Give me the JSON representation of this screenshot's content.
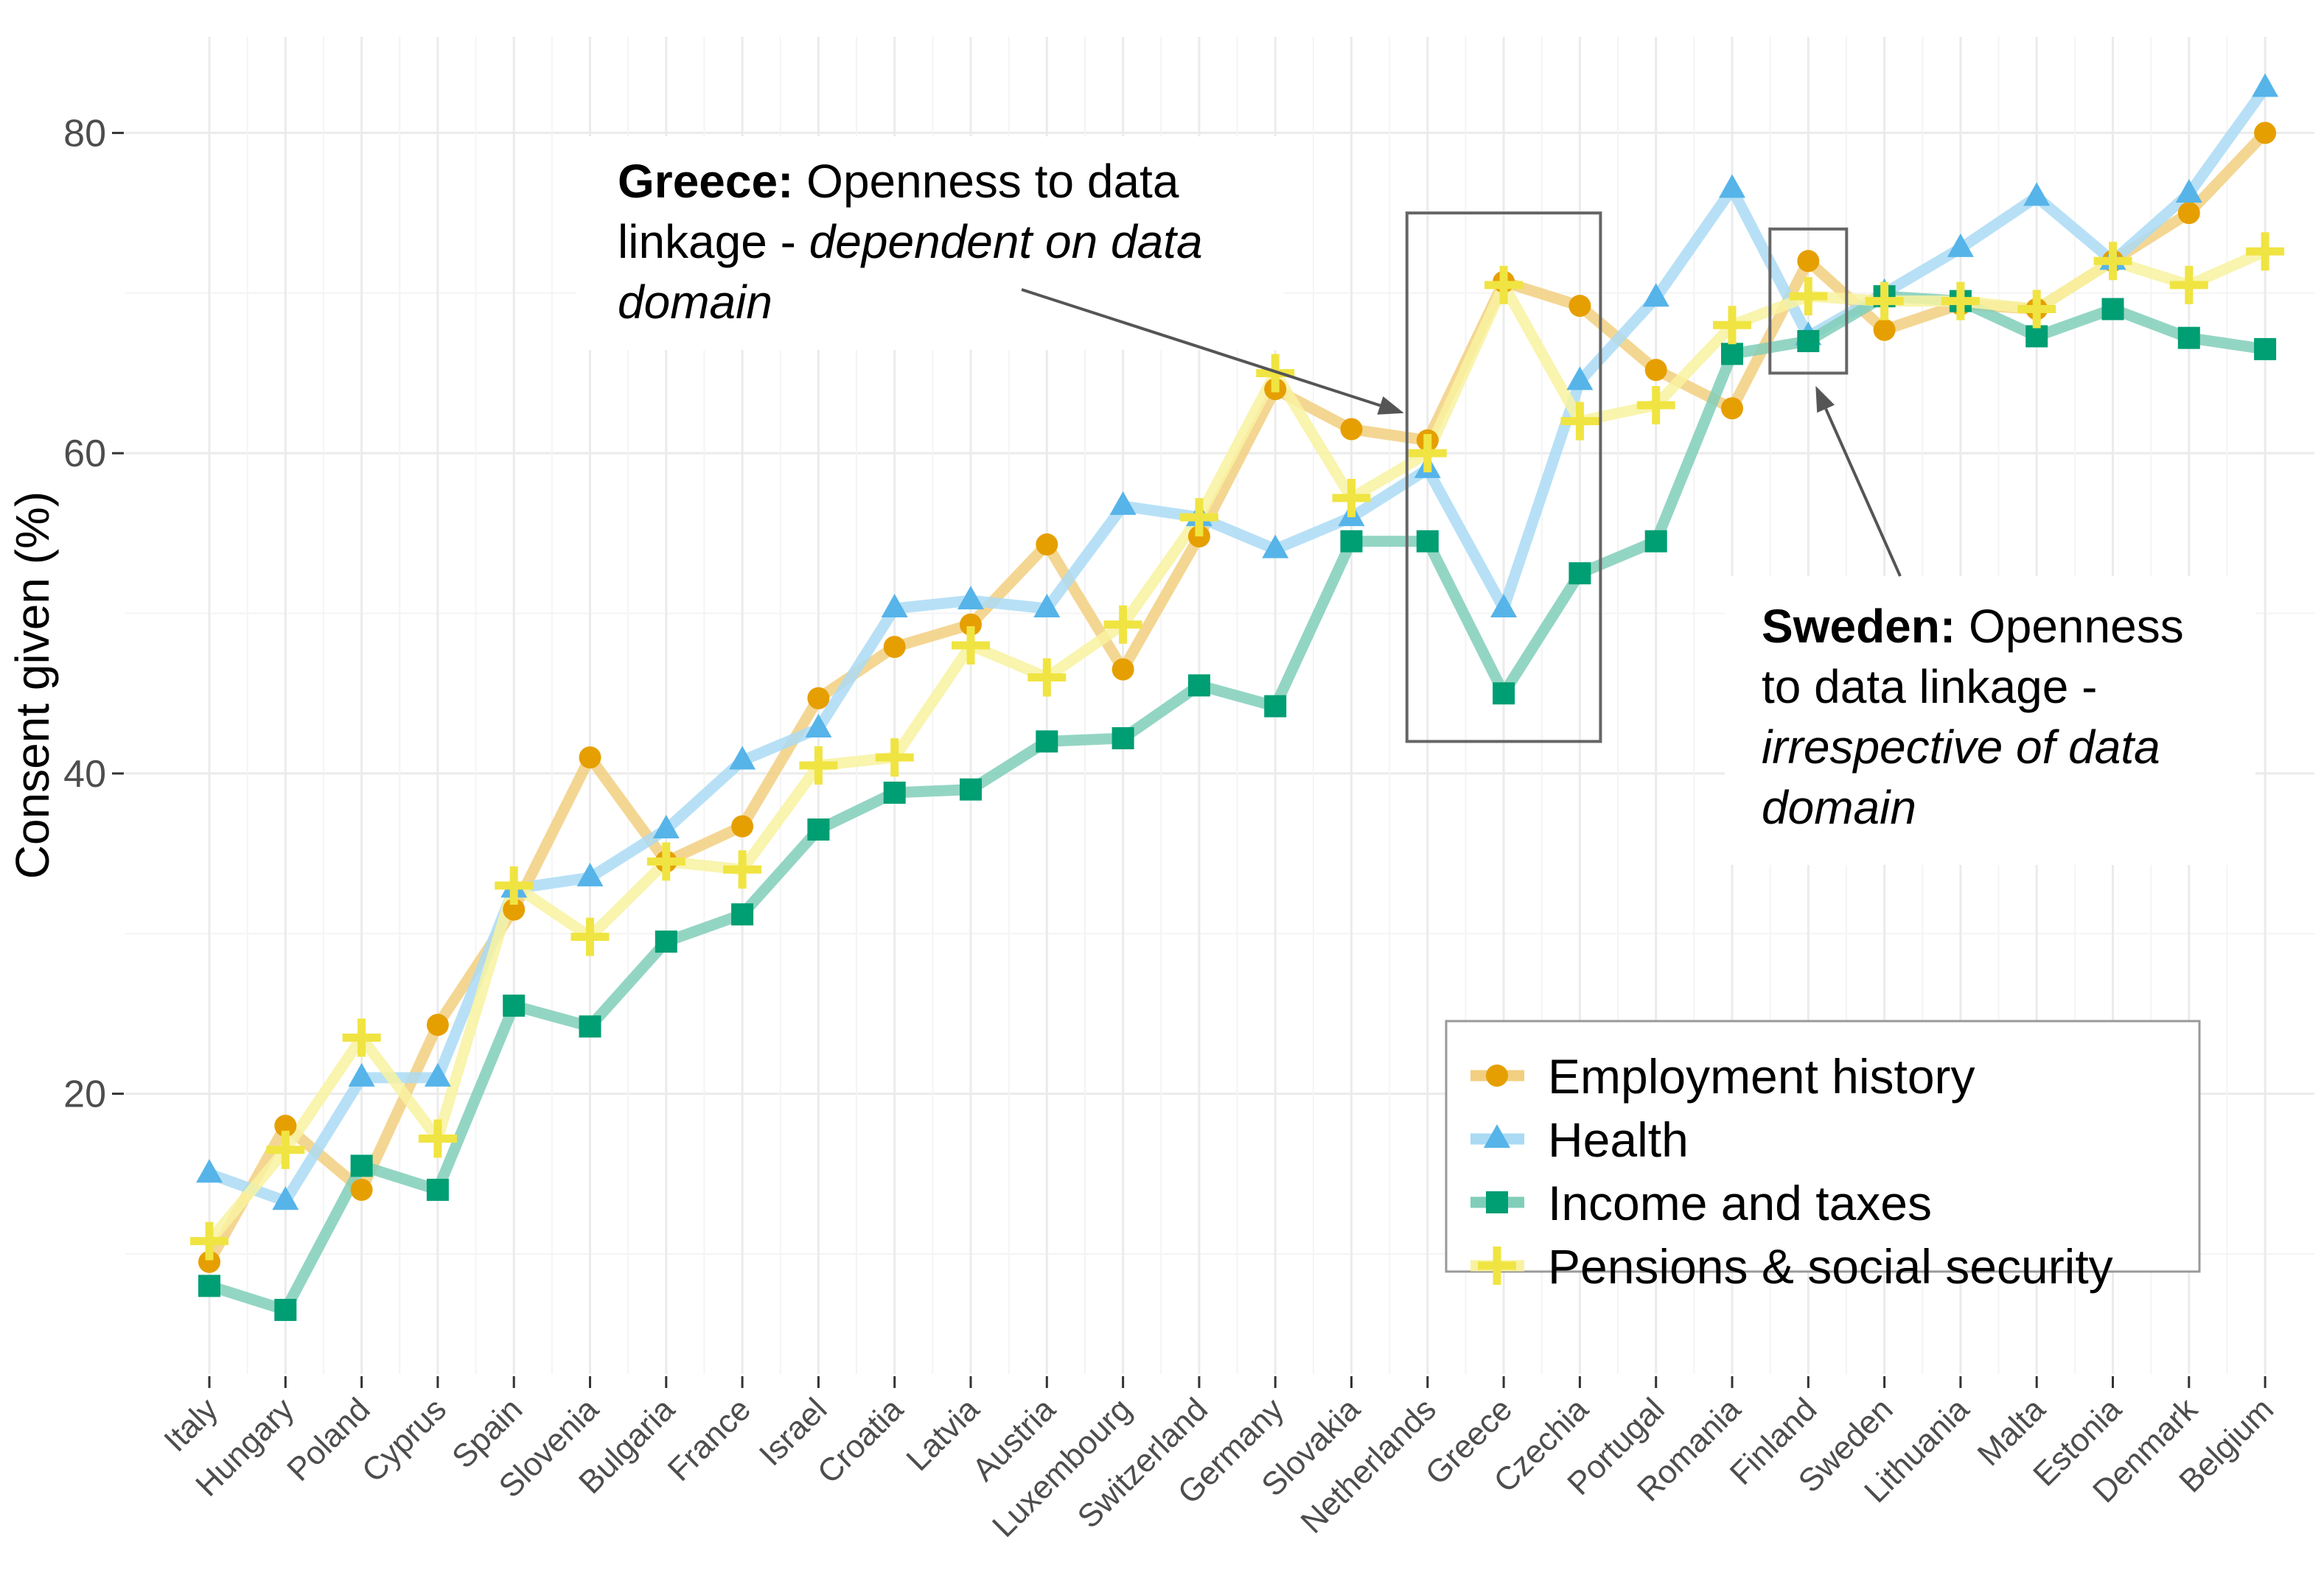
{
  "chart_data": {
    "type": "line",
    "title": "",
    "xlabel": "",
    "ylabel": "Consent given (%)",
    "ylim": [
      2.5,
      86
    ],
    "yticks": [
      20,
      40,
      60,
      80
    ],
    "grid": true,
    "legend_position": "bottom-right",
    "categories": [
      "Italy",
      "Hungary",
      "Poland",
      "Cyprus",
      "Spain",
      "Slovenia",
      "Bulgaria",
      "France",
      "Israel",
      "Croatia",
      "Latvia",
      "Austria",
      "Luxembourg",
      "Switzerland",
      "Germany",
      "Slovakia",
      "Netherlands",
      "Greece",
      "Czechia",
      "Portugal",
      "Romania",
      "Finland",
      "Sweden",
      "Lithuania",
      "Malta",
      "Estonia",
      "Denmark",
      "Belgium"
    ],
    "series": [
      {
        "name": "Employment history",
        "color": "#E69F00",
        "line_color": "#F2CF80",
        "marker": "circle",
        "values": [
          9.5,
          18,
          14,
          24.3,
          31.5,
          41,
          34.5,
          36.7,
          44.7,
          47.9,
          49.3,
          54.3,
          46.5,
          54.8,
          64,
          61.5,
          60.8,
          70.7,
          69.2,
          65.2,
          62.8,
          72,
          67.7,
          69.3,
          69,
          72,
          75,
          80
        ]
      },
      {
        "name": "Health",
        "color": "#56B4E9",
        "line_color": "#AADAF4",
        "marker": "triangle",
        "values": [
          15,
          13.3,
          21,
          21,
          32.8,
          33.5,
          36.5,
          40.8,
          42.8,
          50.3,
          50.8,
          50.3,
          56.7,
          56,
          54,
          56,
          59,
          50.3,
          64.5,
          69.7,
          76.5,
          67.3,
          70,
          72.8,
          76,
          72,
          76.2,
          82.8
        ]
      },
      {
        "name": "Income and taxes",
        "color": "#009E73",
        "line_color": "#80CEB9",
        "marker": "square",
        "values": [
          8,
          6.5,
          15.5,
          14,
          25.5,
          24.2,
          29.5,
          31.2,
          36.5,
          38.8,
          39,
          42,
          42.2,
          45.5,
          44.2,
          54.5,
          54.5,
          45,
          52.5,
          54.5,
          66.2,
          67,
          69.8,
          69.5,
          67.3,
          69,
          67.2,
          66.5
        ]
      },
      {
        "name": "Pensions & social security",
        "color": "#F0E442",
        "line_color": "#F8F2A0",
        "marker": "cross",
        "values": [
          10.8,
          16.5,
          23.5,
          17.2,
          33,
          29.8,
          34.5,
          34,
          40.5,
          41,
          48,
          46,
          49.3,
          56,
          65,
          57.2,
          60,
          70.5,
          62,
          63,
          68,
          69.8,
          69.5,
          69.5,
          69,
          72,
          70.5,
          72.6
        ]
      }
    ],
    "annotations": [
      {
        "bold": "Greece:",
        "plain": " Openness to data",
        "line2": "linkage - ",
        "line2_italic": "dependent on data",
        "line3_italic": "domain",
        "box_categories": [
          "Netherlands",
          "Czechia"
        ],
        "box_range": [
          42,
          75
        ],
        "arrow_to": "Netherlands"
      },
      {
        "bold": "Sweden:",
        "plain": " Openness",
        "line2": "to data linkage -",
        "line3_italic": "irrespective of data",
        "line4_italic": "domain",
        "box_categories": [
          "Finland"
        ],
        "box_range": [
          65,
          74
        ],
        "arrow_to": "Finland"
      }
    ]
  }
}
